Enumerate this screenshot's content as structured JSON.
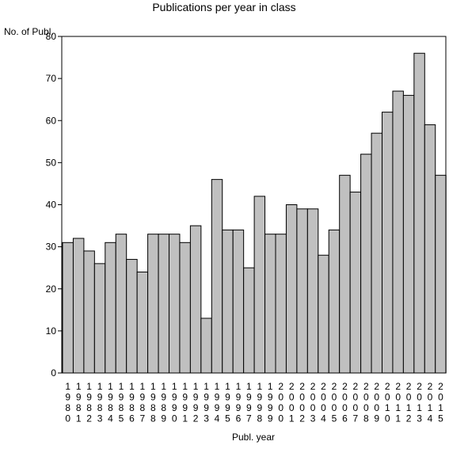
{
  "chart_data": {
    "type": "bar",
    "title": "Publications per year in class",
    "ylabel": "No. of Publ.",
    "xlabel": "Publ. year",
    "ylim": [
      0,
      80
    ],
    "yticks": [
      0,
      10,
      20,
      30,
      40,
      50,
      60,
      70,
      80
    ],
    "grid": false,
    "bar_color": "#c0c0c0",
    "categories": [
      "1980",
      "1981",
      "1982",
      "1983",
      "1984",
      "1985",
      "1986",
      "1987",
      "1988",
      "1989",
      "1990",
      "1991",
      "1992",
      "1993",
      "1994",
      "1995",
      "1996",
      "1997",
      "1998",
      "1999",
      "2000",
      "2001",
      "2002",
      "2003",
      "2004",
      "2005",
      "2006",
      "2007",
      "2008",
      "2009",
      "2010",
      "2011",
      "2012",
      "2013",
      "2014",
      "2015"
    ],
    "values": [
      31,
      32,
      29,
      26,
      31,
      33,
      27,
      24,
      33,
      33,
      33,
      31,
      35,
      13,
      46,
      34,
      34,
      25,
      42,
      33,
      33,
      40,
      39,
      39,
      28,
      34,
      47,
      43,
      52,
      57,
      62,
      67,
      66,
      76,
      59,
      47
    ]
  }
}
